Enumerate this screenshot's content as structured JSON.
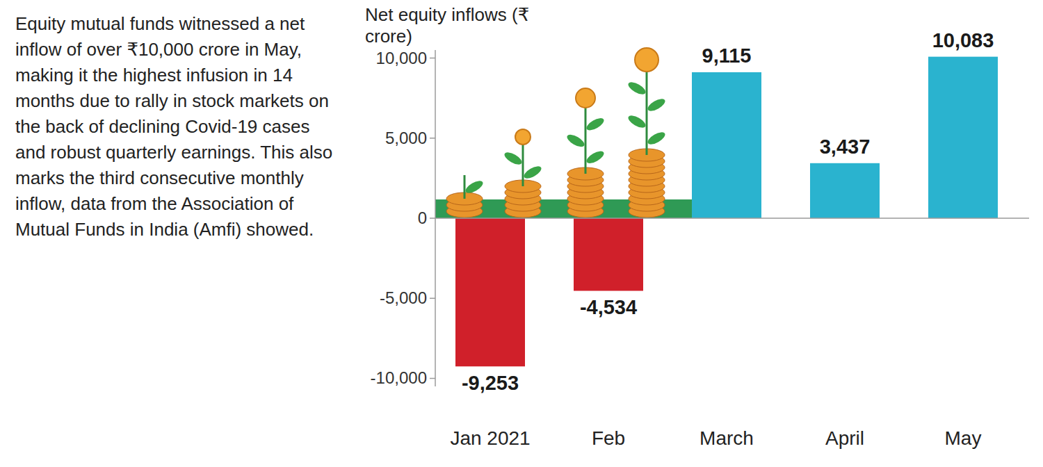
{
  "chart_data": {
    "type": "bar",
    "annotations": [
      "Equity mutual funds witnessed a net inflow of over ₹10,000 crore in May, making it the highest infusion in 14 months due to rally in stock markets on the back of declining Covid-19 cases and robust quarterly earnings. This also marks the third consecutive monthly inflow, data from the Association of Mutual Funds in India (Amfi) showed."
    ],
    "y_label": "Net equity inflows (₹ crore)",
    "categories": [
      "Jan 2021",
      "Feb",
      "March",
      "April",
      "May"
    ],
    "values": [
      -9253,
      -4534,
      9115,
      3437,
      10083
    ],
    "value_labels": [
      "-9,253",
      "-4,534",
      "9,115",
      "3,437",
      "10,083"
    ],
    "colors": [
      "#d0202a",
      "#d0202a",
      "#2ab3cf",
      "#2ab3cf",
      "#2ab3cf"
    ],
    "ylim": [
      -10500,
      10500
    ],
    "yticks": [
      {
        "value": -10000,
        "label": "-10,000"
      },
      {
        "value": -5000,
        "label": "-5,000"
      },
      0,
      {
        "value": 5000,
        "label": "5,000"
      },
      {
        "value": 10000,
        "label": "10,000"
      }
    ],
    "grid": false,
    "data_labels": true
  }
}
